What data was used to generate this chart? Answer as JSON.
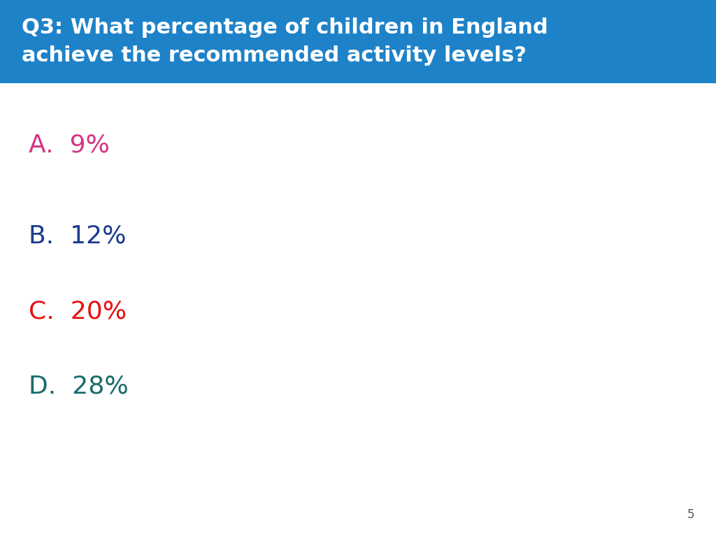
{
  "title_line1": "Q3: What percentage of children in England",
  "title_line2": "achieve the recommended activity levels?",
  "title_bg_color": "#1e82c8",
  "title_text_color": "#ffffff",
  "options": [
    {
      "label": "A.",
      "text": "9%",
      "color": "#d63384"
    },
    {
      "label": "B.",
      "text": "12%",
      "color": "#1a3c8e"
    },
    {
      "label": "C.",
      "text": "20%",
      "color": "#e81010"
    },
    {
      "label": "D.",
      "text": "28%",
      "color": "#1a6b6b"
    }
  ],
  "page_number": "5",
  "page_number_color": "#555555",
  "bg_color": "#ffffff",
  "title_fontsize": 22,
  "option_fontsize": 26,
  "page_num_fontsize": 12
}
